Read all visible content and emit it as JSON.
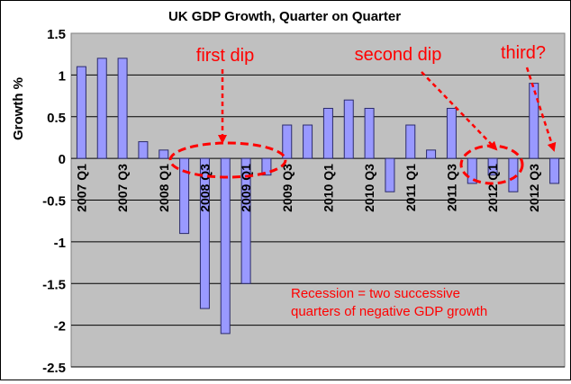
{
  "chart_data": {
    "type": "bar",
    "title": "UK GDP Growth, Quarter on Quarter",
    "xlabel": "",
    "ylabel": "Growth %",
    "ylim": [
      -2.5,
      1.5
    ],
    "yticks": [
      "1.5",
      "1",
      "0.5",
      "0",
      "-0.5",
      "-1",
      "-1.5",
      "-2",
      "-2.5"
    ],
    "grid": true,
    "legend": "none",
    "categories": [
      "2007 Q1",
      "2007 Q2",
      "2007 Q3",
      "2007 Q4",
      "2008 Q1",
      "2008 Q2",
      "2008 Q3",
      "2008 Q4",
      "2009 Q1",
      "2009 Q2",
      "2009 Q3",
      "2009 Q4",
      "2010 Q1",
      "2010 Q2",
      "2010 Q3",
      "2010 Q4",
      "2011 Q1",
      "2011 Q2",
      "2011 Q3",
      "2011 Q4",
      "2012 Q1",
      "2012 Q2",
      "2012 Q3",
      "2012 Q4"
    ],
    "tick_labels": [
      "2007 Q1",
      "2007 Q3",
      "2008 Q1",
      "2008 Q3",
      "2009 Q1",
      "2009 Q3",
      "2010 Q1",
      "2010 Q3",
      "2011 Q1",
      "2011 Q3",
      "2012 Q1",
      "2012 Q3"
    ],
    "values": [
      1.1,
      1.2,
      1.2,
      0.2,
      0.1,
      -0.9,
      -1.8,
      -2.1,
      -1.5,
      -0.2,
      0.4,
      0.4,
      0.6,
      0.7,
      0.6,
      -0.4,
      0.4,
      0.1,
      0.6,
      -0.3,
      -0.2,
      -0.4,
      0.9,
      -0.3
    ],
    "annotations": {
      "first_dip": "first dip",
      "second_dip": "second dip",
      "third": "third?",
      "note_line1": "Recession = two successive",
      "note_line2": "quarters of negative GDP growth"
    },
    "colors": {
      "plot_bg": "#c0c0c0",
      "bar_fill": "#9999ff",
      "bar_stroke": "#2b2b6b",
      "annotation": "#ff0000",
      "grid": "#000000"
    }
  }
}
